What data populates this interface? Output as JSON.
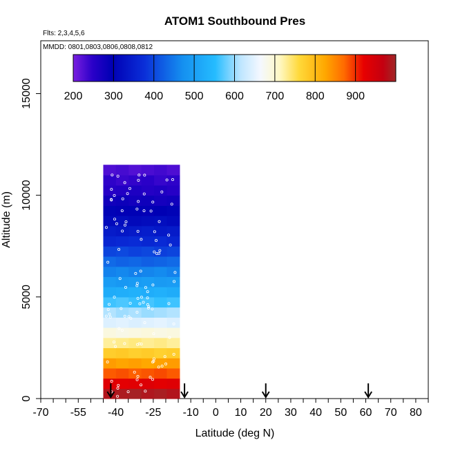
{
  "chart_data": {
    "type": "heatmap",
    "title": "ATOM1 Southbound Pres",
    "flights_label": "Flts: 2,3,4,5,6",
    "dates_label": "MMDD: 0801,0803,0806,0808,0812",
    "xlabel": "Latitude (deg N)",
    "ylabel": "Altitude (m)",
    "xlim": [
      -70,
      85
    ],
    "ylim": [
      0,
      17600
    ],
    "xticks": [
      -70,
      -55,
      -40,
      -25,
      -10,
      0,
      10,
      20,
      30,
      40,
      50,
      60,
      70,
      80
    ],
    "yticks": [
      0,
      5000,
      10000,
      15000
    ],
    "colorbar": {
      "range": [
        200,
        1000
      ],
      "ticks": [
        200,
        300,
        400,
        500,
        600,
        700,
        800,
        900
      ]
    },
    "arrows_lat": [
      -42,
      -12.5,
      20,
      61
    ],
    "pressure_profile": {
      "lat_range": [
        -45,
        -14.5
      ],
      "altitude_m": [
        250,
        750,
        1250,
        1750,
        2250,
        2750,
        3250,
        3750,
        4250,
        4750,
        5250,
        5750,
        6250,
        6750,
        7250,
        7750,
        8250,
        8750,
        9250,
        9750,
        10250,
        10750,
        11250
      ],
      "pressure_hpa": [
        990,
        930,
        880,
        825,
        775,
        730,
        685,
        640,
        600,
        560,
        525,
        490,
        460,
        430,
        400,
        370,
        345,
        320,
        300,
        280,
        260,
        245,
        230
      ]
    }
  }
}
